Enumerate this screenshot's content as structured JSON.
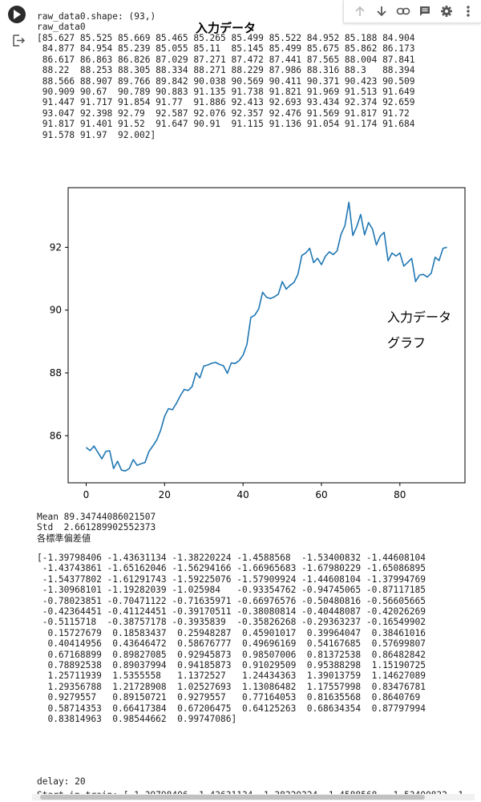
{
  "cell": {
    "output_head": "raw_data0.shape: (93,)\nraw_data0",
    "array_text": "[85.627 85.525 85.669 85.465 85.265 85.499 85.522 84.952 85.188 84.904\n 84.877 84.954 85.239 85.055 85.11  85.145 85.499 85.675 85.862 86.173\n 86.617 86.863 86.826 87.029 87.271 87.472 87.441 87.565 88.004 87.841\n 88.22  88.253 88.305 88.334 88.271 88.229 87.986 88.316 88.3   88.394\n 88.566 88.907 89.766 89.842 90.038 90.569 90.411 90.371 90.423 90.509\n 90.909 90.67  90.789 90.883 91.135 91.738 91.821 91.969 91.513 91.649\n 91.447 91.717 91.854 91.77  91.886 92.413 92.693 93.434 92.374 92.659\n 93.047 92.398 92.79  92.587 92.076 92.357 92.476 91.569 91.817 91.72\n 91.817 91.401 91.52  91.647 90.91  91.115 91.136 91.054 91.174 91.684\n 91.578 91.97  92.002]",
    "stats_text": "Mean 89.34744086021507\nStd  2.661289902552373\n各標準偏差値",
    "std_array_text": "[-1.39798406 -1.43631134 -1.38220224 -1.4588568  -1.53400832 -1.44608104\n -1.43743861 -1.65162046 -1.56294166 -1.66965683 -1.67980229 -1.65086895\n -1.54377802 -1.61291743 -1.59225076 -1.57909924 -1.44608104 -1.37994769\n -1.30968101 -1.19282039 -1.025984   -0.93354762 -0.94745065 -0.87117185\n -0.78023851 -0.70471122 -0.71635971 -0.66976576 -0.50480816 -0.56605665\n -0.42364451 -0.41124451 -0.39170511 -0.38080814 -0.40448087 -0.42026269\n -0.5115718  -0.38757178 -0.3935839  -0.35826268 -0.29363237 -0.16549902\n  0.15727679  0.18583437  0.25948287  0.45901017  0.39964047  0.38461016\n  0.40414956  0.43646472  0.58676777  0.49696169  0.54167685  0.57699807\n  0.67168899  0.89827085  0.92945873  0.98507006  0.81372538  0.86482842\n  0.78892538  0.89037994  0.94185873  0.91029509  0.95388298  1.15190725\n  1.25711939  1.5355558   1.1372527   1.24434363  1.39013759  1.14627089\n  1.29356788  1.21728908  1.02527693  1.13086482  1.17557998  0.83476781\n  0.9279557   0.89150721  0.9279557   0.77164053  0.81635568  0.8640769\n  0.58714353  0.66417384  0.67206475  0.64125263  0.68634354  0.87797994\n  0.83814963  0.98544662  0.99747086]",
    "delay_text": "delay: 20",
    "start_text": "Start in train: [-1.39798406 -1.43631134 -1.38220224 -1.4588568  -1.53400832 -1"
  },
  "annotations": {
    "input_data": "入力データ",
    "chart_caption_1": "入力データ",
    "chart_caption_2": "グラフ"
  },
  "toolbar": {
    "icons": [
      "arrow-up-icon",
      "arrow-down-icon",
      "link-icon",
      "comment-icon",
      "settings-icon",
      "more-vert-icon"
    ]
  },
  "chart_data": {
    "type": "line",
    "color": "#1f77b4",
    "xlim": [
      -4.6,
      96.6
    ],
    "ylim": [
      84.5,
      93.9
    ],
    "xticks": [
      0,
      20,
      40,
      60,
      80
    ],
    "yticks": [
      86,
      88,
      90,
      92
    ],
    "grid": false,
    "values": [
      85.627,
      85.525,
      85.669,
      85.465,
      85.265,
      85.499,
      85.522,
      84.952,
      85.188,
      84.904,
      84.877,
      84.954,
      85.239,
      85.055,
      85.11,
      85.145,
      85.499,
      85.675,
      85.862,
      86.173,
      86.617,
      86.863,
      86.826,
      87.029,
      87.271,
      87.472,
      87.441,
      87.565,
      88.004,
      87.841,
      88.22,
      88.253,
      88.305,
      88.334,
      88.271,
      88.229,
      87.986,
      88.316,
      88.3,
      88.394,
      88.566,
      88.907,
      89.766,
      89.842,
      90.038,
      90.569,
      90.411,
      90.371,
      90.423,
      90.509,
      90.909,
      90.67,
      90.789,
      90.883,
      91.135,
      91.738,
      91.821,
      91.969,
      91.513,
      91.649,
      91.447,
      91.717,
      91.854,
      91.77,
      91.886,
      92.413,
      92.693,
      93.434,
      92.374,
      92.659,
      93.047,
      92.398,
      92.79,
      92.587,
      92.076,
      92.357,
      92.476,
      91.569,
      91.817,
      91.72,
      91.817,
      91.401,
      91.52,
      91.647,
      90.91,
      91.115,
      91.136,
      91.054,
      91.174,
      91.684,
      91.578,
      91.97,
      92.002
    ]
  }
}
